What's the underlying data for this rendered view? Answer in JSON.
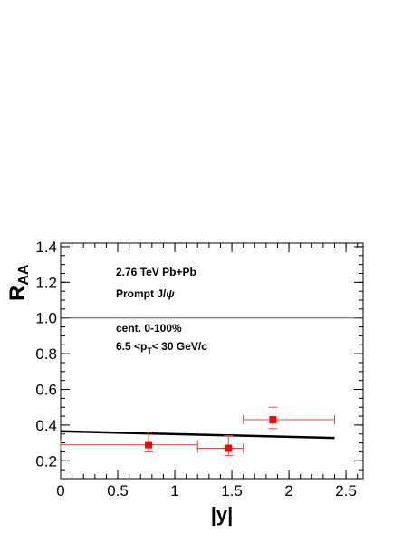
{
  "chart_data": {
    "type": "scatter",
    "xlabel": "|y|",
    "ylabel_main": "R",
    "ylabel_sub": "AA",
    "xlim": [
      0,
      2.65
    ],
    "ylim": [
      0.1,
      1.42
    ],
    "x_ticks": [
      {
        "value": 0,
        "label": "0"
      },
      {
        "value": 0.5,
        "label": "0.5"
      },
      {
        "value": 1,
        "label": "1"
      },
      {
        "value": 1.5,
        "label": "1.5"
      },
      {
        "value": 2,
        "label": "2"
      },
      {
        "value": 2.5,
        "label": "2.5"
      }
    ],
    "y_ticks": [
      {
        "value": 0.2,
        "label": "0.2"
      },
      {
        "value": 0.4,
        "label": "0.4"
      },
      {
        "value": 0.6,
        "label": "0.6"
      },
      {
        "value": 0.8,
        "label": "0.8"
      },
      {
        "value": 1.0,
        "label": "1.0"
      },
      {
        "value": 1.2,
        "label": "1.2"
      },
      {
        "value": 1.4,
        "label": "1.4"
      }
    ],
    "reference_line": {
      "y": 1.0,
      "color": "#555555"
    },
    "points": [
      {
        "x": 0.77,
        "y": 0.29,
        "xlow": 0.0,
        "xhigh": 1.2,
        "ylow": 0.25,
        "yhigh": 0.36
      },
      {
        "x": 1.47,
        "y": 0.27,
        "xlow": 1.2,
        "xhigh": 1.6,
        "ylow": 0.23,
        "yhigh": 0.34
      },
      {
        "x": 1.86,
        "y": 0.43,
        "xlow": 1.6,
        "xhigh": 2.4,
        "ylow": 0.38,
        "yhigh": 0.5
      }
    ],
    "point_color": "#ff0000",
    "error_color": "#e05050",
    "model_curve": {
      "x": [
        0,
        2.4
      ],
      "y": [
        0.365,
        0.328
      ],
      "color": "#000000"
    },
    "annotations": {
      "line1_a": "2.76 TeV  Pb+Pb",
      "line2_a": "Prompt J/",
      "line2_psi": "ψ",
      "line3_a": "cent. 0-100%",
      "line4_a": "6.5 <p",
      "line4_sub": "T",
      "line4_b": "< 30 GeV/c"
    }
  }
}
